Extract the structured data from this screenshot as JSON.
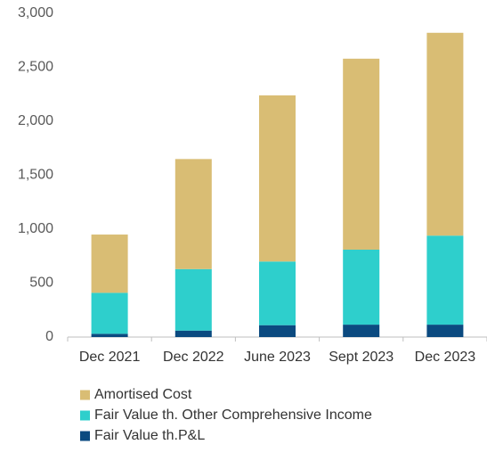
{
  "chart_data": {
    "type": "stacked_bar",
    "categories": [
      "Dec 2021",
      "Dec 2022",
      "June 2023",
      "Sept 2023",
      "Dec 2023"
    ],
    "series": [
      {
        "name": "Fair Value th.P&L",
        "color": "#0b4a80",
        "values": [
          30,
          60,
          110,
          115,
          115
        ]
      },
      {
        "name": "Fair Value th. Other Comprehensive Income",
        "color": "#2ecfcc",
        "values": [
          380,
          570,
          590,
          695,
          825
        ]
      },
      {
        "name": "Amortised Cost",
        "color": "#d9bd74",
        "values": [
          540,
          1020,
          1540,
          1770,
          1880
        ]
      }
    ],
    "ylim": [
      0,
      3000
    ],
    "yticks": [
      0,
      500,
      {
        "value": 1000,
        "label": "1,000"
      },
      {
        "value": 1500,
        "label": "1,500"
      },
      {
        "value": 2000,
        "label": "2,000"
      },
      {
        "value": 2500,
        "label": "2,500"
      },
      {
        "value": 3000,
        "label": "3,000"
      }
    ],
    "grid": false
  }
}
